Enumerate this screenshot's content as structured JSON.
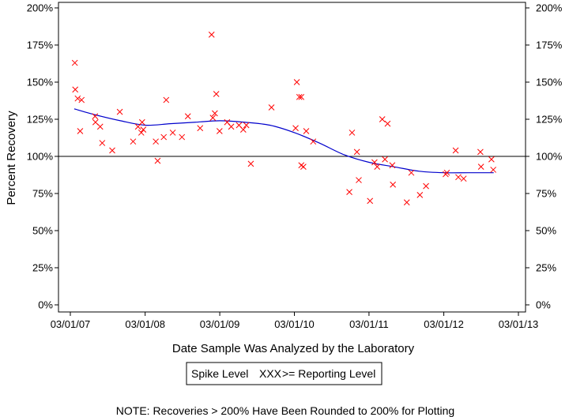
{
  "chart_data": {
    "type": "scatter",
    "title": "",
    "xlabel": "Date Sample Was Analyzed by the Laboratory",
    "ylabel": "Percent Recovery",
    "x_ticks": [
      "03/01/07",
      "03/01/08",
      "03/01/09",
      "03/01/10",
      "03/01/11",
      "03/01/12",
      "03/01/13"
    ],
    "y_ticks": [
      "0%",
      "25%",
      "50%",
      "75%",
      "100%",
      "125%",
      "150%",
      "175%",
      "200%"
    ],
    "ylim": [
      0,
      200
    ],
    "xlim": [
      "2007-01-01",
      "2013-03-01"
    ],
    "reference_line": 100,
    "grid": false,
    "legend": {
      "position": "bottom",
      "title": "Spike Level",
      "marker_text": "XXX",
      "label": ">= Reporting Level"
    },
    "note": "NOTE: Recoveries > 200% Have Been Rounded to 200% for Plotting",
    "series": [
      {
        "name": ">= Reporting Level",
        "points": [
          [
            "2007-03-23",
            163
          ],
          [
            "2007-03-25",
            145
          ],
          [
            "2007-04-06",
            139
          ],
          [
            "2007-04-18",
            117
          ],
          [
            "2007-04-25",
            138
          ],
          [
            "2007-06-30",
            127
          ],
          [
            "2007-07-02",
            123
          ],
          [
            "2007-07-25",
            120
          ],
          [
            "2007-08-04",
            109
          ],
          [
            "2007-09-22",
            104
          ],
          [
            "2007-10-29",
            130
          ],
          [
            "2008-01-02",
            110
          ],
          [
            "2008-01-26",
            120
          ],
          [
            "2008-02-11",
            116
          ],
          [
            "2008-02-15",
            123
          ],
          [
            "2008-02-21",
            118
          ],
          [
            "2008-04-22",
            110
          ],
          [
            "2008-05-01",
            97
          ],
          [
            "2008-05-31",
            113
          ],
          [
            "2008-06-12",
            138
          ],
          [
            "2008-07-14",
            116
          ],
          [
            "2008-08-28",
            113
          ],
          [
            "2008-09-26",
            127
          ],
          [
            "2008-11-25",
            119
          ],
          [
            "2009-01-20",
            182
          ],
          [
            "2009-01-26",
            126
          ],
          [
            "2009-02-05",
            129
          ],
          [
            "2009-02-12",
            142
          ],
          [
            "2009-02-28",
            117
          ],
          [
            "2009-04-06",
            123
          ],
          [
            "2009-04-26",
            120
          ],
          [
            "2009-06-03",
            121
          ],
          [
            "2009-06-24",
            118
          ],
          [
            "2009-07-09",
            121
          ],
          [
            "2009-07-31",
            95
          ],
          [
            "2009-11-09",
            133
          ],
          [
            "2010-03-07",
            119
          ],
          [
            "2010-03-13",
            150
          ],
          [
            "2010-03-25",
            140
          ],
          [
            "2010-04-04",
            140
          ],
          [
            "2010-04-14",
            93
          ],
          [
            "2010-04-04",
            94
          ],
          [
            "2010-04-28",
            117
          ],
          [
            "2010-06-01",
            110
          ],
          [
            "2010-11-25",
            76
          ],
          [
            "2010-12-08",
            116
          ],
          [
            "2011-01-01",
            103
          ],
          [
            "2011-01-10",
            84
          ],
          [
            "2011-03-06",
            70
          ],
          [
            "2011-03-28",
            96
          ],
          [
            "2011-04-10",
            93
          ],
          [
            "2011-05-05",
            125
          ],
          [
            "2011-05-18",
            98
          ],
          [
            "2011-05-31",
            122
          ],
          [
            "2011-06-23",
            94
          ],
          [
            "2011-06-26",
            81
          ],
          [
            "2011-09-02",
            69
          ],
          [
            "2011-09-24",
            89
          ],
          [
            "2011-11-05",
            74
          ],
          [
            "2011-12-05",
            80
          ],
          [
            "2012-03-10",
            88
          ],
          [
            "2012-03-16",
            89
          ],
          [
            "2012-04-28",
            104
          ],
          [
            "2012-05-11",
            86
          ],
          [
            "2012-06-06",
            85
          ],
          [
            "2012-08-30",
            93
          ],
          [
            "2012-08-27",
            103
          ],
          [
            "2012-10-20",
            98
          ],
          [
            "2012-10-29",
            91
          ]
        ]
      }
    ],
    "trend": {
      "name": "Smoothed trend",
      "points": [
        [
          "2007-03-20",
          132
        ],
        [
          "2007-07-01",
          128
        ],
        [
          "2007-11-01",
          124
        ],
        [
          "2008-03-01",
          121
        ],
        [
          "2008-07-01",
          122
        ],
        [
          "2008-11-01",
          123
        ],
        [
          "2009-03-01",
          124
        ],
        [
          "2009-07-01",
          123
        ],
        [
          "2009-11-01",
          121
        ],
        [
          "2010-03-01",
          116
        ],
        [
          "2010-07-01",
          109
        ],
        [
          "2010-11-01",
          101
        ],
        [
          "2011-03-01",
          96
        ],
        [
          "2011-07-01",
          93
        ],
        [
          "2011-11-01",
          90
        ],
        [
          "2012-03-01",
          89
        ],
        [
          "2012-07-01",
          89
        ],
        [
          "2012-10-31",
          89
        ]
      ]
    },
    "colors": {
      "points": "#ff0000",
      "trend": "#0000cc",
      "reference": "#000000",
      "axes": "#000000",
      "legend_marker": "#ff0000"
    }
  }
}
